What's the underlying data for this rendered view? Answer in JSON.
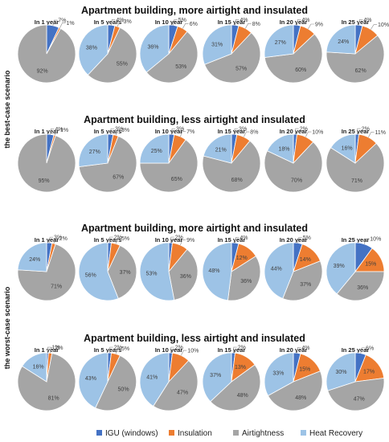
{
  "colors": {
    "igu": "#4472C4",
    "insulation": "#ED7D31",
    "airtightness": "#A5A5A5",
    "heat_recovery": "#9DC3E6",
    "slice_border": "#ffffff",
    "leader": "#8c8c8c",
    "text": "#404040",
    "title": "#111111"
  },
  "scenario_labels": [
    "the best-case scenario",
    "the worst-case scenario"
  ],
  "legend": [
    "IGU (windows)",
    "Insulation",
    "Airtightness",
    "Heat Recovery"
  ],
  "chart_data": {
    "type": "pie",
    "slice_order": [
      "IGU (windows)",
      "Insulation",
      "Airtightness",
      "Heat Recovery"
    ],
    "groups": [
      {
        "title": "Apartment building, more airtight and insulated",
        "scenario": "the best-case scenario",
        "pies": [
          {
            "title": "In 1 year",
            "values": [
              7,
              1,
              92,
              0
            ]
          },
          {
            "title": "In 5 years",
            "values": [
              4,
              3,
              55,
              38
            ]
          },
          {
            "title": "In 10 year",
            "values": [
              5,
              6,
              53,
              36
            ]
          },
          {
            "title": "In 15 year",
            "values": [
              4,
              8,
              57,
              31
            ]
          },
          {
            "title": "In 20 year",
            "values": [
              4,
              9,
              60,
              27
            ]
          },
          {
            "title": "In 25 year",
            "values": [
              4,
              10,
              62,
              24
            ]
          }
        ]
      },
      {
        "title": "Apartment building, less airtight and insulated",
        "scenario": "the best-case scenario",
        "pies": [
          {
            "title": "In 1 year",
            "values": [
              4,
              1,
              95,
              0
            ]
          },
          {
            "title": "In 5 years",
            "values": [
              3,
              3,
              67,
              27
            ]
          },
          {
            "title": "In 10 year",
            "values": [
              3,
              7,
              65,
              25
            ]
          },
          {
            "title": "In 15 year",
            "values": [
              3,
              8,
              68,
              21
            ]
          },
          {
            "title": "In 20 year",
            "values": [
              2,
              10,
              70,
              18
            ]
          },
          {
            "title": "In 25 year",
            "values": [
              2,
              11,
              71,
              16
            ]
          }
        ]
      },
      {
        "title": "Apartment building, more airtight and insulated",
        "scenario": "the worst-case scenario",
        "pies": [
          {
            "title": "In 1 year",
            "values": [
              3,
              2,
              71,
              24
            ]
          },
          {
            "title": "In 5 years",
            "values": [
              2,
              5,
              37,
              56
            ]
          },
          {
            "title": "In 10 year",
            "values": [
              2,
              9,
              36,
              53
            ]
          },
          {
            "title": "In 15 year",
            "values": [
              4,
              12,
              36,
              48
            ]
          },
          {
            "title": "In 20 year",
            "values": [
              5,
              14,
              37,
              44
            ]
          },
          {
            "title": "In 25 year",
            "values": [
              10,
              15,
              36,
              39
            ]
          }
        ]
      },
      {
        "title": "Apartment building, less airtight and insulated",
        "scenario": "the worst-case scenario",
        "pies": [
          {
            "title": "In 1 year",
            "values": [
              1,
              2,
              81,
              16
            ]
          },
          {
            "title": "In 5 years",
            "values": [
              2,
              5,
              50,
              43
            ]
          },
          {
            "title": "In 10 year",
            "values": [
              2,
              10,
              47,
              41
            ]
          },
          {
            "title": "In 15 year",
            "values": [
              2,
              13,
              48,
              37
            ]
          },
          {
            "title": "In 20 year",
            "values": [
              4,
              15,
              48,
              33
            ]
          },
          {
            "title": "In 25 year",
            "values": [
              6,
              17,
              47,
              30
            ]
          }
        ]
      }
    ],
    "legend_position": "bottom"
  }
}
